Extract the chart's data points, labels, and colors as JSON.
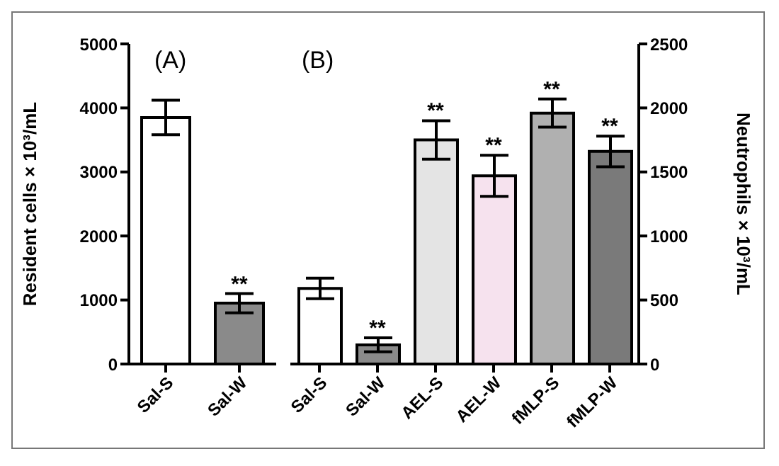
{
  "chart_data": [
    {
      "type": "bar",
      "title": "(A)",
      "ylabel": "Resident cells × 10³/mL",
      "categories": [
        "Sal-S",
        "Sal-W"
      ],
      "values": [
        3850,
        950
      ],
      "errors": [
        270,
        150
      ],
      "colors": [
        "#ffffff",
        "#8a8a8a"
      ],
      "ylim": [
        0,
        5000
      ],
      "yticks": [
        0,
        1000,
        2000,
        3000,
        4000,
        5000
      ],
      "grid": false,
      "legend": false,
      "annotations": [
        {
          "text": "**",
          "x": "Sal-W",
          "y": 1100
        }
      ]
    },
    {
      "type": "bar",
      "title": "(B)",
      "ylabel": "Neutrophils × 10³/mL",
      "categories": [
        "Sal-S",
        "Sal-W",
        "AEL-S",
        "AEL-W",
        "fMLP-S",
        "fMLP-W"
      ],
      "values": [
        590,
        150,
        1750,
        1470,
        1960,
        1660
      ],
      "errors": [
        80,
        55,
        150,
        160,
        110,
        120
      ],
      "colors": [
        "#ffffff",
        "#8a8a8a",
        "#e4e4e4",
        "#f6e2ee",
        "#b0b0b0",
        "#7a7a7a"
      ],
      "ylim": [
        0,
        2500
      ],
      "yticks": [
        0,
        500,
        1000,
        1500,
        2000,
        2500
      ],
      "grid": false,
      "legend": false,
      "annotations": [
        {
          "text": "**",
          "x": "Sal-W",
          "y": 205
        },
        {
          "text": "**",
          "x": "AEL-S",
          "y": 1900
        },
        {
          "text": "**",
          "x": "AEL-W",
          "y": 1630
        },
        {
          "text": "**",
          "x": "fMLP-S",
          "y": 2070
        },
        {
          "text": "**",
          "x": "fMLP-W",
          "y": 1780
        }
      ]
    }
  ]
}
